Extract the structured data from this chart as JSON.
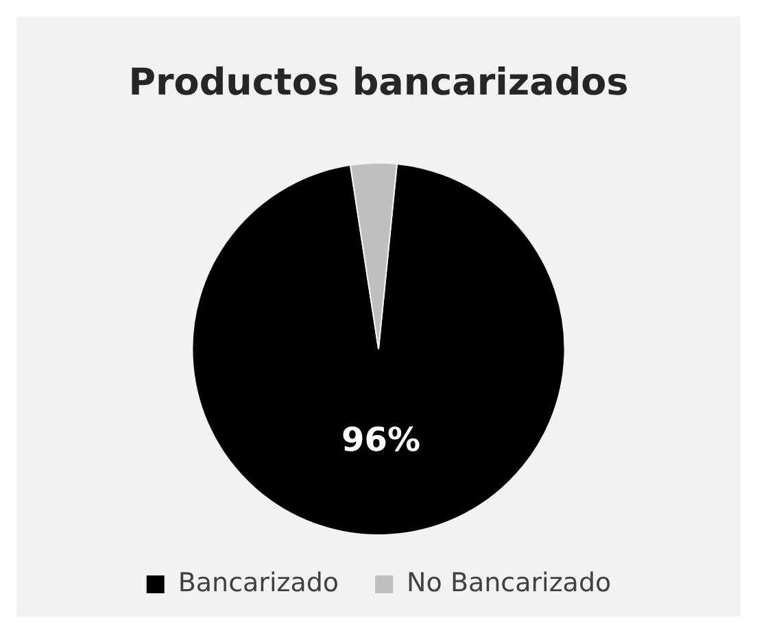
{
  "chart_data": {
    "type": "pie",
    "title": "Productos bancarizados",
    "categories": [
      "Bancarizado",
      "No Bancarizado"
    ],
    "values": [
      96,
      4
    ],
    "colors": [
      "#000000",
      "#bfbfbf"
    ],
    "value_labels": [
      "96%",
      null
    ],
    "legend": "bottom"
  }
}
